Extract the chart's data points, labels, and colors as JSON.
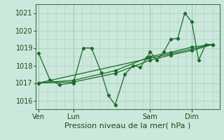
{
  "bg_color": "#cce8dc",
  "plot_bg_color": "#cce8dc",
  "grid_color": "#aad0c0",
  "line_color": "#1a6b2a",
  "marker_color": "#1a6b2a",
  "xlabel": "Pression niveau de la mer( hPa )",
  "xlabel_fontsize": 8,
  "ylim": [
    1015.5,
    1021.5
  ],
  "yticks": [
    1016,
    1017,
    1018,
    1019,
    1020,
    1021
  ],
  "xtick_labels": [
    "Ven",
    "Lun",
    "Sam",
    "Dim"
  ],
  "xtick_positions": [
    0,
    2.5,
    8,
    11
  ],
  "vline_positions": [
    0,
    2.5,
    8,
    11
  ],
  "xlim": [
    -0.2,
    13.0
  ],
  "series1_x": [
    0,
    0.8,
    1.5,
    2.5,
    3.2,
    3.8,
    4.5,
    5.0,
    5.5,
    6.2,
    6.8,
    7.3,
    7.8,
    8.0,
    8.5,
    9.0,
    9.5,
    10.0,
    10.5,
    11.0,
    11.5,
    12.0,
    12.5
  ],
  "series1_y": [
    1018.7,
    1017.2,
    1016.9,
    1017.0,
    1019.0,
    1019.0,
    1017.6,
    1016.3,
    1015.75,
    1017.5,
    1018.0,
    1017.9,
    1018.45,
    1018.8,
    1018.3,
    1018.8,
    1019.5,
    1019.55,
    1021.0,
    1020.5,
    1018.3,
    1019.2,
    1019.2
  ],
  "series2_x": [
    0,
    2.5,
    5.5,
    8.0,
    9.5,
    11.0,
    12.5
  ],
  "series2_y": [
    1017.0,
    1017.05,
    1017.55,
    1018.3,
    1018.6,
    1018.85,
    1019.2
  ],
  "series3_x": [
    0,
    2.5,
    5.5,
    8.0,
    9.5,
    11.0,
    12.5
  ],
  "series3_y": [
    1017.0,
    1017.15,
    1017.7,
    1018.5,
    1018.75,
    1019.05,
    1019.2
  ],
  "series4_x": [
    0,
    12.5
  ],
  "series4_y": [
    1017.0,
    1019.2
  ]
}
